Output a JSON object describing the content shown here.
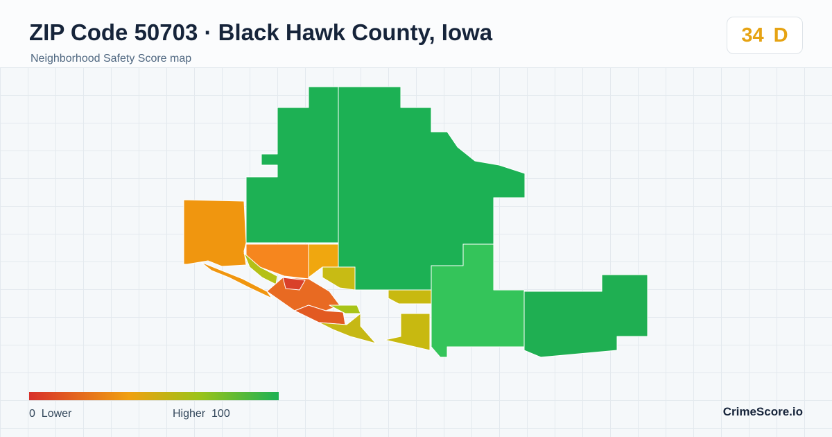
{
  "header": {
    "title": "ZIP Code 50703 · Black Hawk County, Iowa",
    "subtitle": "Neighborhood Safety Score map"
  },
  "score": {
    "value": 34,
    "grade": "D"
  },
  "legend": {
    "min": 0,
    "min_label": "Lower",
    "max_label": "Higher",
    "max": 100
  },
  "brand": "CrimeScore.io"
}
